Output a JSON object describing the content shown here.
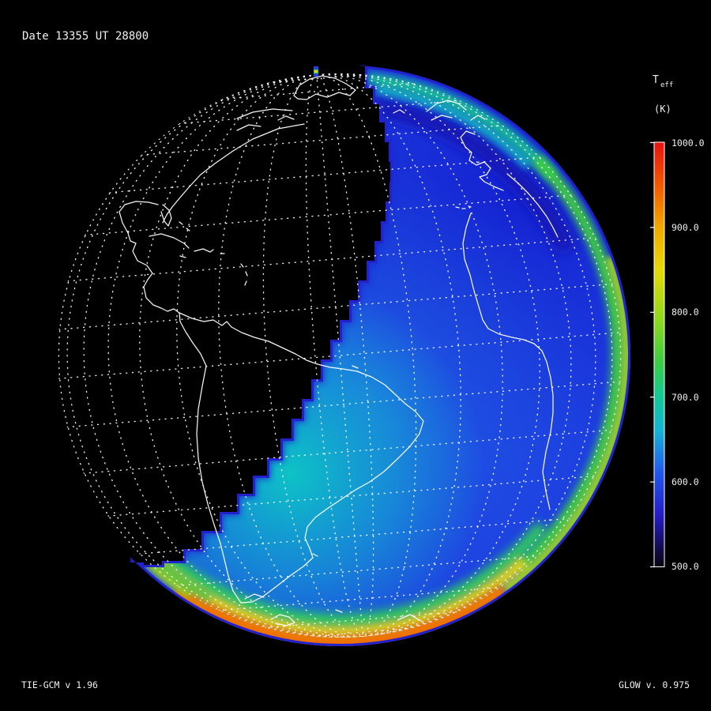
{
  "header": {
    "date_label": "Date 13355  UT 28800"
  },
  "colorbar": {
    "title_main": "T",
    "title_sub": "eff",
    "units": "(K)",
    "ticks": [
      {
        "label": "1000.0"
      },
      {
        "label": "900.0"
      },
      {
        "label": "800.0"
      },
      {
        "label": "700.0"
      },
      {
        "label": "600.0"
      },
      {
        "label": "500.0"
      }
    ]
  },
  "footer": {
    "model_label": "TIE-GCM v 1.96",
    "glow_label": "GLOW v. 0.975"
  },
  "colors": {
    "background": "#000000",
    "text": "#f0f0f0",
    "coastline": "#ffffff",
    "graticule": "#ffffff",
    "day_base_blue": "#1d3fe0",
    "terminator_edge_navy": "#2222cc",
    "subsolar_teal": "#0cc9c4",
    "limb_green": "#3ecb42",
    "limb_yellow": "#ddd41a",
    "limb_orange": "#f07a00",
    "colorbar_top_red": "#e81212"
  },
  "chart_data": {
    "type": "heatmap",
    "title": "T_eff",
    "units": "K",
    "projection": "orthographic globe centered near equator over South America / Atlantic; night side rendered black with white coastlines and dotted 10-degree graticule",
    "colorbar": {
      "orientation": "vertical",
      "position": "right",
      "min": 500.0,
      "max": 1000.0,
      "tick_values": [
        1000.0,
        900.0,
        800.0,
        700.0,
        600.0,
        500.0
      ],
      "scale_stops": [
        {
          "value": 1000,
          "color": "#e81212"
        },
        {
          "value": 950,
          "color": "#f25800"
        },
        {
          "value": 900,
          "color": "#f2a800"
        },
        {
          "value": 850,
          "color": "#e6da08"
        },
        {
          "value": 790,
          "color": "#8ed81e"
        },
        {
          "value": 740,
          "color": "#3acc46"
        },
        {
          "value": 700,
          "color": "#12c996"
        },
        {
          "value": 660,
          "color": "#16b2d4"
        },
        {
          "value": 610,
          "color": "#2257ea"
        },
        {
          "value": 560,
          "color": "#241cc2"
        },
        {
          "value": 520,
          "color": "#120a46"
        },
        {
          "value": 500,
          "color": "#070310"
        }
      ]
    },
    "field_estimates": [
      {
        "region": "night side, left of terminator",
        "value_K": null,
        "note": "unlit, black"
      },
      {
        "region": "dayside interior, upper right",
        "value_K": 580
      },
      {
        "region": "dayside mid disk",
        "value_K": 620
      },
      {
        "region": "near terminator, lower dayside (teal patch)",
        "value_K": 690
      },
      {
        "region": "top-right limb rim",
        "value_K": 720
      },
      {
        "region": "right limb rim",
        "value_K": 780
      },
      {
        "region": "bottom-right limb rim",
        "value_K": 850
      },
      {
        "region": "southern limb rim (brightest arc)",
        "value_K": 950
      }
    ],
    "annotations": {
      "date": "13355",
      "ut_seconds": "28800",
      "model": "TIE-GCM v 1.96",
      "airglow_model": "GLOW v. 0.975"
    }
  }
}
